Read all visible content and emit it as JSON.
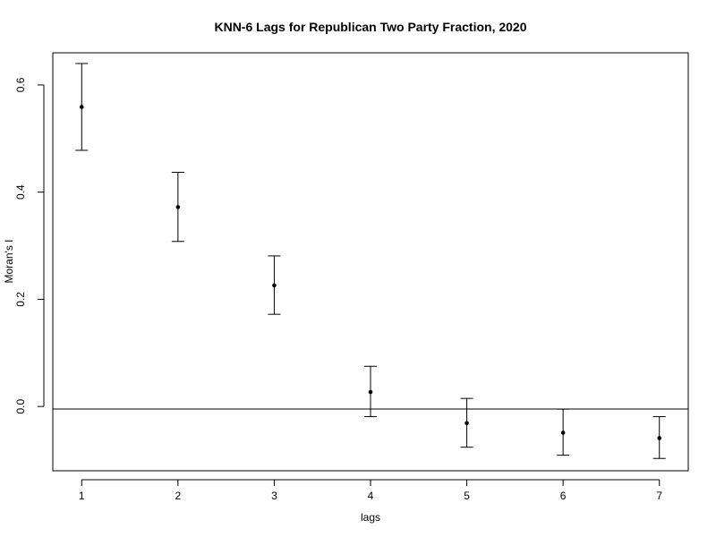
{
  "chart_data": {
    "type": "scatter",
    "title": "KNN-6 Lags for Republican Two Party Fraction, 2020",
    "xlabel": "lags",
    "ylabel": "Moran's  I",
    "x": [
      1,
      2,
      3,
      4,
      5,
      6,
      7
    ],
    "y": [
      0.559,
      0.372,
      0.226,
      0.027,
      -0.031,
      -0.049,
      -0.059
    ],
    "ci_upper": [
      0.64,
      0.437,
      0.281,
      0.075,
      0.015,
      -0.005,
      -0.019
    ],
    "ci_lower": [
      0.478,
      0.308,
      0.172,
      -0.019,
      -0.076,
      -0.091,
      -0.097
    ],
    "x_ticks": [
      "1",
      "2",
      "3",
      "4",
      "5",
      "6",
      "7"
    ],
    "y_ticks": [
      "0.0",
      "0.2",
      "0.4",
      "0.6"
    ],
    "y_tick_values": [
      0.0,
      0.2,
      0.4,
      0.6
    ],
    "xlim": [
      0.7,
      7.3
    ],
    "ylim": [
      -0.12,
      0.66
    ],
    "reference_line_y": -0.0048,
    "grid": false,
    "legend": "none",
    "colors": {
      "points": "#000000",
      "background": "#ffffff"
    }
  }
}
